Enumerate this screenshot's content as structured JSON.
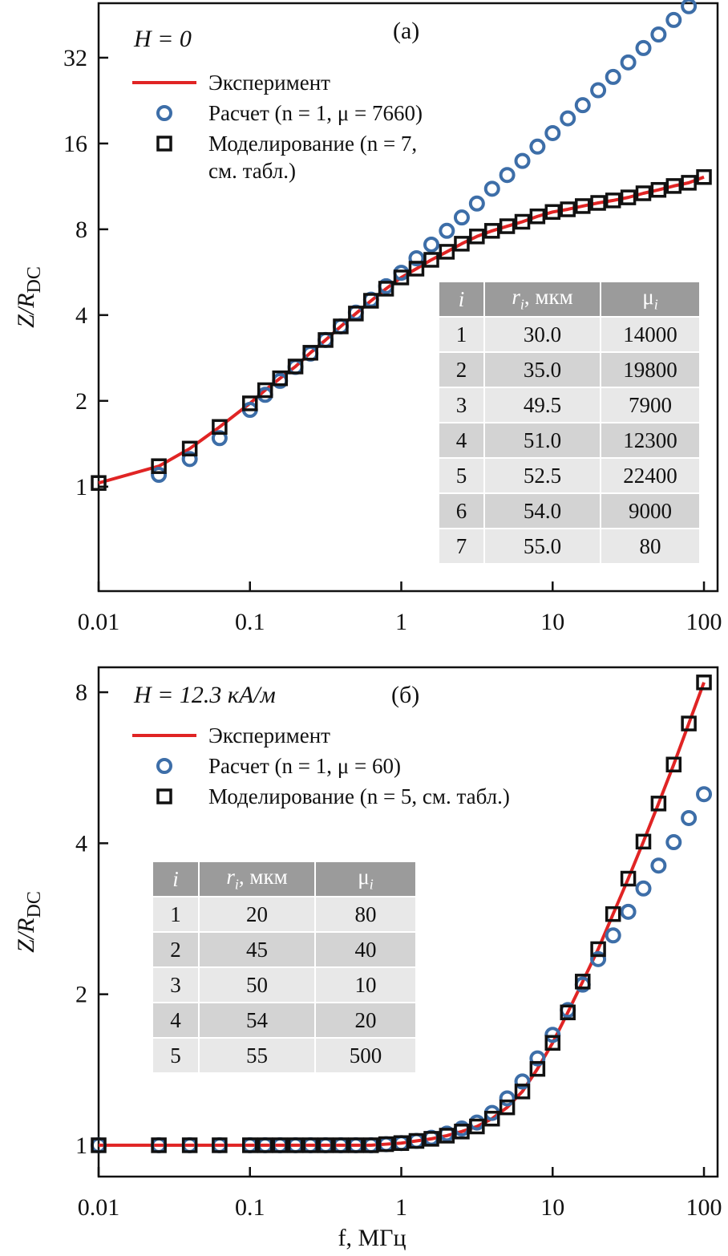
{
  "chart_data": [
    {
      "type": "line",
      "annotation": "H = 0",
      "panel_label": "(a)",
      "ylabel": "Z/R",
      "ylabel_sub": "DC",
      "xscale": "log",
      "yscale": "log",
      "legend": "upper left",
      "xlim": [
        0.01,
        123
      ],
      "xticks": [
        0.01,
        0.1,
        1,
        10,
        100
      ],
      "ylim": [
        0.43,
        49.7
      ],
      "yticks": [
        1,
        2,
        4,
        8,
        16,
        32
      ],
      "x": [
        0.01,
        0.025,
        0.04,
        0.063,
        0.1,
        0.126,
        0.158,
        0.2,
        0.251,
        0.316,
        0.398,
        0.501,
        0.631,
        0.794,
        1,
        1.26,
        1.58,
        2,
        2.51,
        3.16,
        3.98,
        5.01,
        6.31,
        7.94,
        10,
        12.6,
        15.8,
        20,
        25.1,
        31.6,
        39.8,
        50.1,
        63.1,
        79.4,
        100
      ],
      "series": [
        {
          "name": "Эксперимент",
          "marker": "line",
          "color": "#e02424",
          "values": [
            1.03,
            1.18,
            1.36,
            1.62,
            1.96,
            2.18,
            2.4,
            2.64,
            2.95,
            3.27,
            3.65,
            4.05,
            4.49,
            4.95,
            5.42,
            5.82,
            6.25,
            6.67,
            7.12,
            7.55,
            7.9,
            8.2,
            8.5,
            8.88,
            9.2,
            9.4,
            9.65,
            9.9,
            10.1,
            10.35,
            10.7,
            11.0,
            11.35,
            11.65,
            12.2
          ]
        },
        {
          "name": "Расчет (n = 1, μ = 7660)",
          "marker": "circle",
          "color": "#3d6ea8",
          "values": [
            null,
            1.1,
            1.25,
            1.48,
            1.86,
            2.1,
            2.35,
            2.63,
            2.93,
            3.27,
            3.65,
            4.08,
            4.53,
            5.05,
            5.63,
            6.33,
            7.07,
            7.9,
            8.8,
            9.85,
            11.1,
            12.4,
            13.9,
            15.6,
            17.4,
            19.6,
            21.8,
            24.6,
            27.4,
            30.8,
            34.6,
            38.6,
            43.4,
            48.5,
            null
          ]
        },
        {
          "name": "Моделирование (n = 7, см. табл.)",
          "marker": "square",
          "color": "#111111",
          "values": [
            1.03,
            1.18,
            1.36,
            1.62,
            1.96,
            2.18,
            2.4,
            2.64,
            2.95,
            3.27,
            3.65,
            4.05,
            4.49,
            4.95,
            5.42,
            5.82,
            6.25,
            6.67,
            7.12,
            7.55,
            7.9,
            8.2,
            8.5,
            8.88,
            9.2,
            9.4,
            9.65,
            9.9,
            10.1,
            10.35,
            10.7,
            11.0,
            11.35,
            11.65,
            12.2
          ]
        }
      ],
      "table": {
        "columns": [
          {
            "text": "i"
          },
          {
            "text": "r",
            "sub": "i",
            "suffix": ", мкм"
          },
          {
            "text": "μ",
            "sub": "i"
          }
        ],
        "rows": [
          [
            "1",
            "30.0",
            "14000"
          ],
          [
            "2",
            "35.0",
            "19800"
          ],
          [
            "3",
            "49.5",
            "7900"
          ],
          [
            "4",
            "51.0",
            "12300"
          ],
          [
            "5",
            "52.5",
            "22400"
          ],
          [
            "6",
            "54.0",
            "9000"
          ],
          [
            "7",
            "55.0",
            "80"
          ]
        ]
      }
    },
    {
      "type": "line",
      "annotation": "H = 12.3 кА/м",
      "panel_label": "(б)",
      "ylabel": "Z/R",
      "ylabel_sub": "DC",
      "xlabel": "f, МГц",
      "xscale": "log",
      "yscale": "log",
      "legend": "upper left",
      "xlim": [
        0.01,
        123
      ],
      "xticks": [
        0.01,
        0.1,
        1,
        10,
        100
      ],
      "ylim": [
        0.866,
        8.97
      ],
      "yticks": [
        1,
        2,
        4,
        8
      ],
      "x": [
        0.01,
        0.025,
        0.04,
        0.063,
        0.1,
        0.126,
        0.158,
        0.2,
        0.251,
        0.316,
        0.398,
        0.501,
        0.631,
        0.794,
        1,
        1.26,
        1.58,
        2,
        2.51,
        3.16,
        3.98,
        5.01,
        6.31,
        7.94,
        10,
        12.6,
        15.8,
        20,
        25.1,
        31.6,
        39.8,
        50.1,
        63.1,
        79.4,
        100
      ],
      "series": [
        {
          "name": "Эксперимент",
          "marker": "line",
          "color": "#e02424",
          "values": [
            1,
            1,
            1,
            1,
            1,
            1,
            1,
            1,
            1,
            1,
            1,
            1,
            1,
            1.005,
            1.01,
            1.02,
            1.03,
            1.045,
            1.065,
            1.09,
            1.13,
            1.19,
            1.28,
            1.42,
            1.6,
            1.84,
            2.12,
            2.46,
            2.89,
            3.4,
            4.03,
            4.8,
            5.74,
            6.93,
            8.37
          ]
        },
        {
          "name": "Расчет (n = 1, μ = 60)",
          "marker": "circle",
          "color": "#3d6ea8",
          "values": [
            1,
            1,
            1,
            1,
            1,
            1,
            1,
            1,
            1,
            1,
            1,
            1,
            1,
            1.005,
            1.01,
            1.02,
            1.035,
            1.055,
            1.08,
            1.11,
            1.16,
            1.24,
            1.34,
            1.49,
            1.66,
            1.86,
            2.09,
            2.35,
            2.62,
            2.92,
            3.25,
            3.61,
            4.02,
            4.49,
            5.01
          ]
        },
        {
          "name": "Моделирование (n = 5, см. табл.)",
          "marker": "square",
          "color": "#111111",
          "values": [
            1,
            1,
            1,
            1,
            1,
            1,
            1,
            1,
            1,
            1,
            1,
            1,
            1,
            1.005,
            1.01,
            1.02,
            1.03,
            1.045,
            1.065,
            1.09,
            1.13,
            1.19,
            1.28,
            1.42,
            1.6,
            1.84,
            2.12,
            2.46,
            2.89,
            3.4,
            4.03,
            4.8,
            5.74,
            6.93,
            8.37
          ]
        }
      ],
      "table": {
        "columns": [
          {
            "text": "i"
          },
          {
            "text": "r",
            "sub": "i",
            "suffix": ", мкм"
          },
          {
            "text": "μ",
            "sub": "i"
          }
        ],
        "rows": [
          [
            "1",
            "20",
            "80"
          ],
          [
            "2",
            "45",
            "40"
          ],
          [
            "3",
            "50",
            "10"
          ],
          [
            "4",
            "54",
            "20"
          ],
          [
            "5",
            "55",
            "500"
          ]
        ]
      }
    }
  ]
}
